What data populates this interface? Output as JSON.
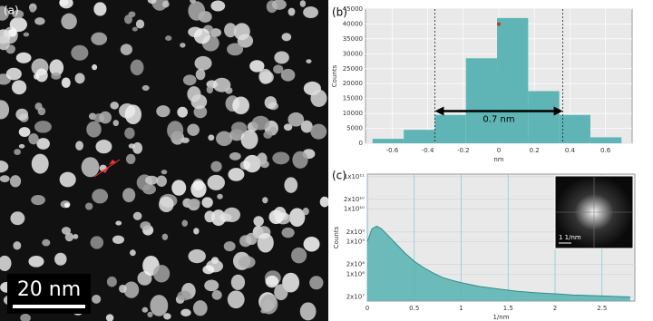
{
  "panel_a": {
    "label": "(a)",
    "scale_bar": "20 nm"
  },
  "chart_data": [
    {
      "type": "histogram",
      "panel_label": "(b)",
      "x_label": "nm",
      "y_label": "Counts",
      "bins": [
        -0.71,
        -0.535,
        -0.36,
        -0.185,
        -0.01,
        0.165,
        0.34,
        0.515,
        0.69
      ],
      "values": [
        1500,
        4500,
        9500,
        28500,
        42000,
        17500,
        9500,
        2000
      ],
      "color": "#5fb5b5",
      "xlim": [
        -0.75,
        0.75
      ],
      "xticks": [
        -0.6,
        -0.4,
        -0.2,
        0,
        0.2,
        0.4,
        0.6
      ],
      "ylim": [
        0,
        45000
      ],
      "yticks": [
        0,
        5000,
        10000,
        15000,
        20000,
        25000,
        30000,
        35000,
        40000,
        45000
      ],
      "range_lines": [
        -0.36,
        0.36
      ],
      "annotation": "0.7 nm",
      "peak_point": {
        "x": 0,
        "y": 40000,
        "color": "#c0392b"
      },
      "grid": true
    },
    {
      "type": "line",
      "panel_label": "(c)",
      "x_label": "1/nm",
      "y_label": "Counts",
      "log_y": true,
      "x": [
        0,
        0.05,
        0.1,
        0.15,
        0.2,
        0.3,
        0.4,
        0.5,
        0.6,
        0.7,
        0.8,
        0.9,
        1.0,
        1.2,
        1.4,
        1.6,
        1.8,
        2.0,
        2.2,
        2.4,
        2.6,
        2.8
      ],
      "values": [
        1000000000,
        2500000000,
        3000000000,
        2500000000,
        1800000000,
        900000000,
        450000000,
        250000000,
        160000000,
        110000000,
        80000000,
        65000000,
        55000000,
        42000000,
        35000000,
        30000000,
        27000000,
        25000000,
        23000000,
        22000000,
        21000000,
        20000000
      ],
      "color": "#5fb5b5",
      "xlim": [
        0,
        2.85
      ],
      "xticks": [
        0,
        0.5,
        1,
        1.5,
        2,
        2.5
      ],
      "ylim": [
        15000000,
        120000000000
      ],
      "yticks": [
        {
          "value": 20000000,
          "label": "2x10⁷"
        },
        {
          "value": 100000000,
          "label": "1x10⁸"
        },
        {
          "value": 200000000,
          "label": "2x10⁸"
        },
        {
          "value": 1000000000,
          "label": "1x10⁹"
        },
        {
          "value": 2000000000,
          "label": "2x10⁹"
        },
        {
          "value": 10000000000,
          "label": "1x10¹⁰"
        },
        {
          "value": 20000000000,
          "label": "2x10¹⁰"
        },
        {
          "value": 100000000000,
          "label": "1x10¹¹"
        }
      ],
      "inset_label": "1 1/nm",
      "grid": true
    }
  ]
}
